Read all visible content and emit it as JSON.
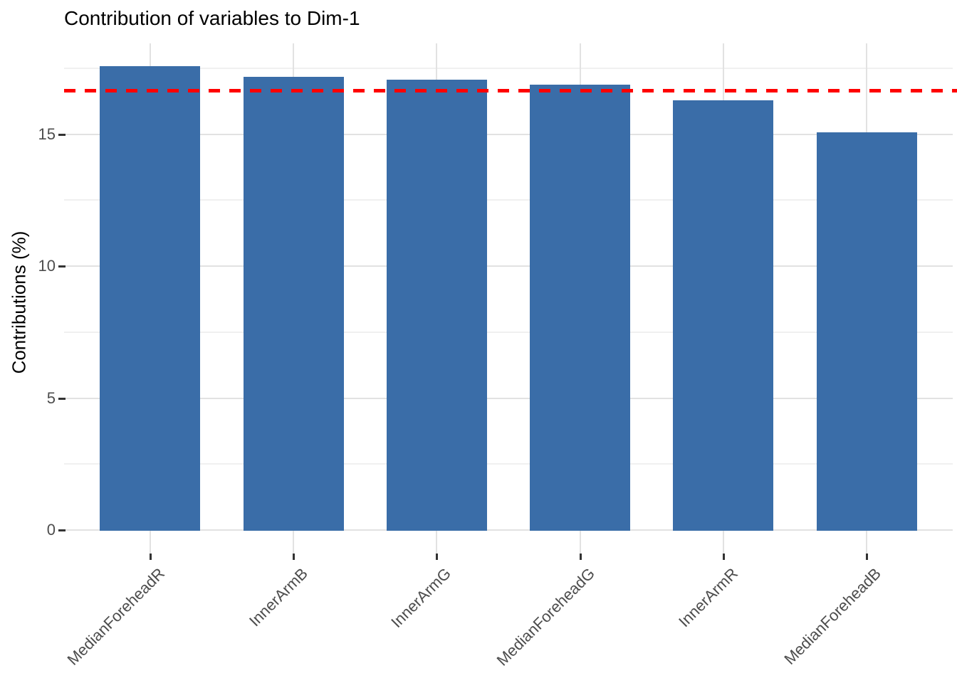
{
  "chart_data": {
    "type": "bar",
    "title": "Contribution of variables to Dim-1",
    "xlabel": "",
    "ylabel": "Contributions (%)",
    "categories": [
      "MedianForeheadR",
      "InnerArmB",
      "InnerArmG",
      "MedianForeheadG",
      "InnerArmR",
      "MedianForeheadB"
    ],
    "values": [
      17.6,
      17.2,
      17.1,
      16.9,
      16.3,
      15.1
    ],
    "yticks": [
      0,
      5,
      10,
      15
    ],
    "minor_ticks": [
      2.5,
      7.5,
      12.5,
      17.5
    ],
    "ylim": [
      -0.9,
      18.45
    ],
    "grid": "major and minor horizontal, major vertical at category centers",
    "legend_position": "none",
    "x_label_rotation_deg": 45,
    "reference_line": {
      "value": 16.67,
      "style": "dashed",
      "color": "#FF0000"
    },
    "colors": {
      "bar_fill": "#3A6DA8",
      "grid_major": "#E2E2E2",
      "grid_minor": "#F0F0F0",
      "axis_text": "#4D4D4D",
      "tick_mark": "#333333",
      "title_text": "#000000",
      "background": "#FFFFFF",
      "reference": "#FF0000"
    }
  }
}
